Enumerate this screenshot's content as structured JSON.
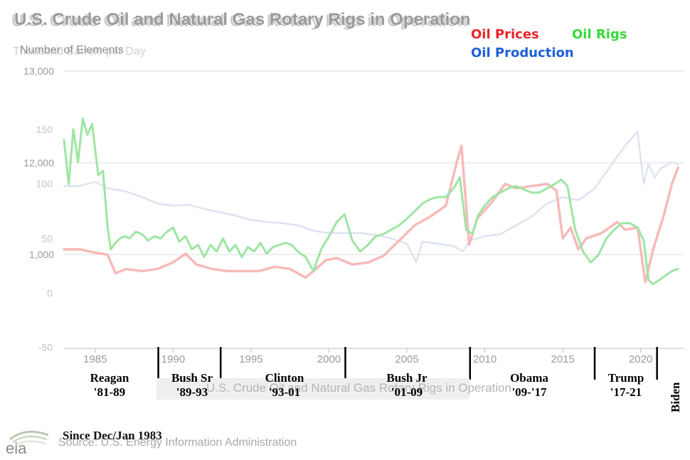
{
  "header": {
    "title": "U.S. Crude Oil and Natural Gas Rotary Rigs in Operation",
    "subtitle": "Number of Elements",
    "subtitle_ghost": "Thousand Barrels per Day"
  },
  "legend_overlay": {
    "oil_prices": "Oil Prices",
    "oil_rigs": "Oil Rigs",
    "oil_production": "Oil Production",
    "colors": {
      "oil_prices": "#e8262a",
      "oil_rigs": "#34d93a",
      "oil_production": "#1f5fd6"
    }
  },
  "presidents": [
    {
      "name": "Reagan",
      "years": "'81-89"
    },
    {
      "name": "Bush Sr",
      "years": "'89-93"
    },
    {
      "name": "Clinton",
      "years": "'93-01"
    },
    {
      "name": "Bush Jr",
      "years": "'01-09"
    },
    {
      "name": "Obama",
      "years": "'09-'17"
    },
    {
      "name": "Trump",
      "years": "'17-21"
    },
    {
      "name": "Biden",
      "years": ""
    }
  ],
  "ghost_legend": "U.S. Crude Oil and Natural Gas Rotary Rigs in Operation",
  "source": "Source: U.S. Energy Information Administration",
  "since": "Since Dec/Jan 1983",
  "logo_text": "eia",
  "chart_data": {
    "type": "line",
    "xlim": [
      1983,
      2022.8
    ],
    "x_ticks": [
      "1985",
      "1990",
      "1995",
      "2000",
      "2005",
      "2010",
      "2015",
      "2020"
    ],
    "y_ticks_rigs": [
      "13,000",
      "12,000",
      "1,000"
    ],
    "y_ticks_price": [
      "150",
      "100",
      "50",
      "0",
      "-50"
    ],
    "president_boundaries": [
      1989.05,
      1993.05,
      2001.05,
      2009.05,
      2017.05,
      2021.05
    ],
    "series": [
      {
        "name": "Oil Rigs",
        "color": "#9ee5a3",
        "x": [
          1983.0,
          1983.3,
          1983.6,
          1983.9,
          1984.2,
          1984.5,
          1984.8,
          1985.2,
          1985.5,
          1985.8,
          1986.0,
          1986.3,
          1986.6,
          1986.9,
          1987.2,
          1987.6,
          1988.0,
          1988.4,
          1988.8,
          1989.2,
          1989.6,
          1990.0,
          1990.4,
          1990.8,
          1991.2,
          1991.6,
          1992.0,
          1992.4,
          1992.8,
          1993.2,
          1993.6,
          1994.0,
          1994.4,
          1994.8,
          1995.2,
          1995.6,
          1996.0,
          1996.4,
          1996.8,
          1997.2,
          1997.6,
          1998.0,
          1998.5,
          1999.0,
          1999.5,
          2000.0,
          2000.5,
          2001.0,
          2001.5,
          2002.0,
          2002.5,
          2003.0,
          2003.5,
          2004.0,
          2004.5,
          2005.0,
          2005.5,
          2006.0,
          2006.5,
          2007.0,
          2007.5,
          2008.0,
          2008.4,
          2008.8,
          2009.2,
          2009.6,
          2010.0,
          2010.5,
          2011.0,
          2011.5,
          2012.0,
          2012.5,
          2013.0,
          2013.5,
          2014.0,
          2014.5,
          2014.9,
          2015.3,
          2015.8,
          2016.3,
          2016.8,
          2017.3,
          2017.8,
          2018.3,
          2018.8,
          2019.3,
          2019.8,
          2020.2,
          2020.5,
          2020.8,
          2021.2,
          2021.6,
          2022.0,
          2022.4
        ],
        "values": [
          140,
          100,
          150,
          120,
          160,
          145,
          155,
          108,
          112,
          60,
          40,
          46,
          50,
          52,
          50,
          56,
          54,
          48,
          52,
          50,
          56,
          60,
          47,
          52,
          40,
          44,
          33,
          44,
          38,
          50,
          38,
          44,
          33,
          42,
          38,
          46,
          36,
          42,
          44,
          46,
          44,
          38,
          33,
          20,
          40,
          52,
          65,
          72,
          48,
          38,
          44,
          52,
          54,
          58,
          62,
          68,
          75,
          82,
          86,
          88,
          88,
          96,
          106,
          58,
          54,
          72,
          80,
          88,
          92,
          96,
          98,
          95,
          92,
          92,
          96,
          100,
          104,
          98,
          58,
          38,
          28,
          35,
          50,
          58,
          64,
          64,
          60,
          48,
          12,
          8,
          12,
          16,
          20,
          22
        ]
      },
      {
        "name": "Oil Prices",
        "color": "#f6b3b3",
        "x": [
          1983.0,
          1984.0,
          1985.0,
          1985.8,
          1986.3,
          1987.0,
          1988.0,
          1989.0,
          1990.0,
          1990.8,
          1991.5,
          1992.5,
          1993.5,
          1994.5,
          1995.5,
          1996.5,
          1997.5,
          1998.5,
          1999.0,
          1999.8,
          2000.5,
          2001.5,
          2002.5,
          2003.5,
          2004.5,
          2005.5,
          2006.5,
          2007.5,
          2008.2,
          2008.5,
          2009.0,
          2009.5,
          2010.5,
          2011.3,
          2012.0,
          2013.0,
          2014.0,
          2014.6,
          2015.0,
          2015.5,
          2016.0,
          2016.5,
          2017.5,
          2018.5,
          2019.0,
          2019.8,
          2020.3,
          2020.8,
          2021.5,
          2022.0,
          2022.4
        ],
        "values": [
          40,
          40,
          37,
          35,
          18,
          22,
          20,
          22,
          28,
          36,
          26,
          22,
          20,
          20,
          20,
          24,
          22,
          14,
          20,
          30,
          32,
          26,
          28,
          34,
          48,
          62,
          70,
          80,
          120,
          135,
          44,
          68,
          84,
          100,
          96,
          98,
          100,
          94,
          50,
          60,
          40,
          50,
          55,
          65,
          58,
          60,
          10,
          40,
          72,
          100,
          115
        ]
      },
      {
        "name": "Oil Production",
        "color": "#d9e0f0",
        "x": [
          1983.0,
          1984.0,
          1985.0,
          1985.8,
          1987.0,
          1988.0,
          1989.0,
          1990.0,
          1991.0,
          1992.0,
          1993.0,
          1994.0,
          1995.0,
          1996.0,
          1997.0,
          1998.0,
          1999.0,
          2000.0,
          2001.0,
          2002.0,
          2003.0,
          2004.0,
          2005.0,
          2005.6,
          2006.0,
          2007.0,
          2008.0,
          2008.6,
          2009.0,
          2010.0,
          2011.0,
          2012.0,
          2013.0,
          2014.0,
          2015.0,
          2016.0,
          2017.0,
          2018.0,
          2019.0,
          2019.8,
          2020.2,
          2020.5,
          2020.9,
          2021.3,
          2022.0,
          2022.4
        ],
        "values": [
          98,
          98,
          102,
          96,
          93,
          88,
          82,
          80,
          81,
          77,
          74,
          71,
          67,
          65,
          64,
          62,
          57,
          55,
          55,
          55,
          53,
          50,
          45,
          28,
          47,
          45,
          43,
          38,
          48,
          52,
          54,
          62,
          70,
          82,
          88,
          85,
          95,
          115,
          135,
          148,
          100,
          118,
          106,
          114,
          120,
          118
        ]
      }
    ]
  }
}
